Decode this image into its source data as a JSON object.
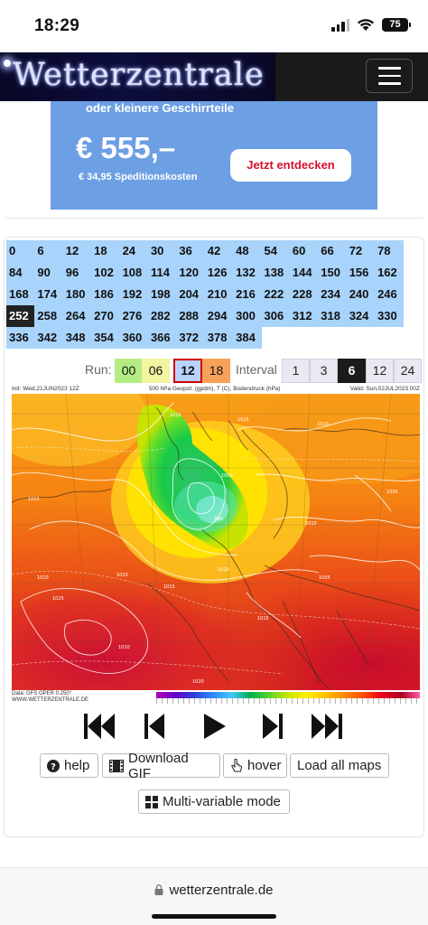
{
  "status": {
    "time": "18:29",
    "battery": "75"
  },
  "header": {
    "logo_text": "Wetterzentrale"
  },
  "ad": {
    "top_text": "oder kleinere Geschirrteile",
    "price": "€ 555,–",
    "shipping": "€ 34,95 Speditionskosten",
    "cta": "Jetzt entdecken"
  },
  "steps": [
    [
      "0",
      "6",
      "12",
      "18",
      "24",
      "30",
      "36",
      "42",
      "48",
      "54",
      "60",
      "66",
      "72",
      "78"
    ],
    [
      "84",
      "90",
      "96",
      "102",
      "108",
      "114",
      "120",
      "126",
      "132",
      "138",
      "144",
      "150",
      "156",
      "162"
    ],
    [
      "168",
      "174",
      "180",
      "186",
      "192",
      "198",
      "204",
      "210",
      "216",
      "222",
      "228",
      "234",
      "240",
      "246"
    ],
    [
      "252",
      "258",
      "264",
      "270",
      "276",
      "282",
      "288",
      "294",
      "300",
      "306",
      "312",
      "318",
      "324",
      "330"
    ],
    [
      "336",
      "342",
      "348",
      "354",
      "360",
      "366",
      "372",
      "378",
      "384"
    ]
  ],
  "active_step": "252",
  "run": {
    "label": "Run:",
    "options": [
      {
        "label": "00",
        "color": "#b4ec84"
      },
      {
        "label": "06",
        "color": "#f2f4a0"
      },
      {
        "label": "12",
        "color": "#b9d2ff"
      },
      {
        "label": "18",
        "color": "#f7a25a"
      }
    ],
    "selected": "12"
  },
  "interval": {
    "label": "Interval",
    "options": [
      "1",
      "3",
      "6",
      "12",
      "24"
    ],
    "selected": "6"
  },
  "map": {
    "init_text": "Init: Wed,21JUN2023 12Z",
    "var_text": "500 hPa Geopot. (gpdm), T (C), Bodendruck (hPa)",
    "valid_text": "Valid: Sun,02JUL2023 00Z",
    "footer_line1": "Data: GFS OPER 0.250°",
    "footer_line2": "WWW.WETTERZENTRALE.DE",
    "isobar_labels": [
      "1010",
      "1015",
      "1010",
      "1005",
      "1000",
      "995",
      "1015",
      "1020",
      "1025",
      "1010",
      "1015",
      "1020",
      "1010",
      "1005",
      "1015",
      "1010",
      "1020"
    ]
  },
  "controls": [
    "first-frame",
    "previous-frame",
    "play",
    "next-frame",
    "last-frame"
  ],
  "tools": {
    "help": "help",
    "download": "Download GIF",
    "hover": "hover",
    "load_all": "Load all maps",
    "multi": "Multi-variable mode"
  },
  "browser": {
    "url": "wetterzentrale.de"
  }
}
